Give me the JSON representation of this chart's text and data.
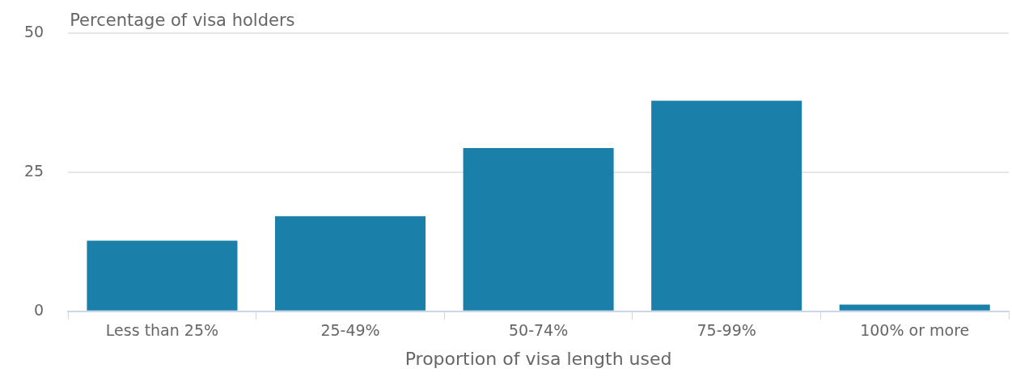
{
  "chart_data": {
    "type": "bar",
    "ylabel": "Percentage of visa holders",
    "xlabel": "Proportion of visa length used",
    "categories": [
      "Less than 25%",
      "25-49%",
      "50-74%",
      "75-99%",
      "100% or more"
    ],
    "values": [
      12.7,
      17.1,
      29.4,
      37.9,
      1.2
    ],
    "color": "#1a80aa",
    "ylim": [
      0,
      50
    ],
    "yticks": [
      0,
      25,
      50
    ],
    "grid": "y",
    "legend": false
  }
}
